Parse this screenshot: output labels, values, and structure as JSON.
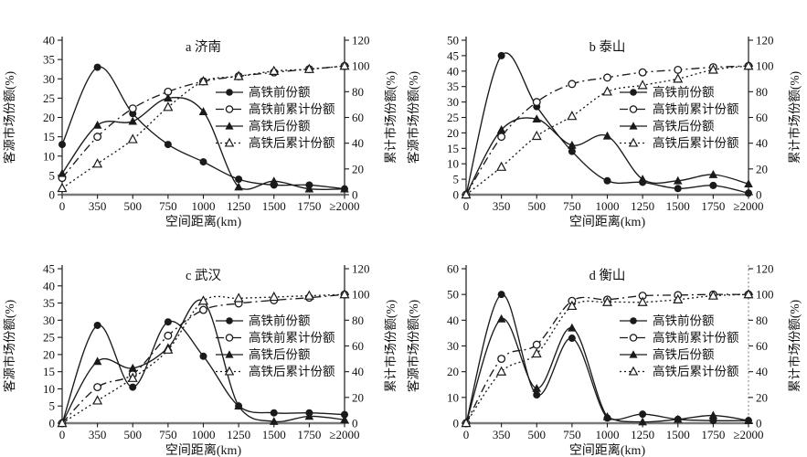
{
  "figure": {
    "background": "#ffffff",
    "colors": {
      "line": "#1a1a1a",
      "baseline": "#7a7a7a",
      "dotted_axis": "#8f8f8f",
      "text": "#111111",
      "marker_fill_open": "#ffffff"
    },
    "legend_labels": [
      "高铁前份额",
      "高铁前累计份额",
      "高铁后份额",
      "高铁后累计份额"
    ]
  },
  "chart_data": [
    {
      "type": "line",
      "title": "a 济南",
      "xlabel": "空间距离(km)",
      "ylabel_left": "客源市场份额(%)",
      "ylabel_right": "累计市场份额(%)",
      "categories": [
        "0",
        "350",
        "500",
        "750",
        "1000",
        "1250",
        "1500",
        "1750",
        "≥2000"
      ],
      "left_axis": {
        "min": 0,
        "max": 40,
        "step": 5
      },
      "right_axis": {
        "min": 0,
        "max": 120,
        "step": 20,
        "style": "solid"
      },
      "legend_position": "right-center",
      "grid": false,
      "series": [
        {
          "id": "pre-hsr-share",
          "name": "高铁前份额",
          "axis": "left",
          "marker": "filled-circle",
          "line": "solid",
          "values": [
            13,
            33,
            21,
            13,
            8.5,
            4,
            2.5,
            2.5,
            1.5
          ]
        },
        {
          "id": "pre-hsr-cumulative-share",
          "name": "高铁前累计份额",
          "axis": "right",
          "marker": "open-circle",
          "line": "dashdot",
          "values": [
            13,
            45,
            67,
            80,
            88,
            92,
            95,
            97.5,
            100
          ]
        },
        {
          "id": "post-hsr-share",
          "name": "高铁后份额",
          "axis": "left",
          "marker": "filled-triangle",
          "line": "solid",
          "values": [
            5.5,
            18,
            19,
            25,
            21.5,
            2,
            3.5,
            1.5,
            1.5
          ]
        },
        {
          "id": "post-hsr-cumulative-share",
          "name": "高铁后累计份额",
          "axis": "right",
          "marker": "open-triangle",
          "line": "dotted",
          "values": [
            5,
            24,
            43,
            68,
            88,
            92,
            96,
            97.5,
            100
          ]
        }
      ]
    },
    {
      "type": "line",
      "title": "b 泰山",
      "xlabel": "空间距离(km)",
      "ylabel_left": "客源市场份额(%)",
      "ylabel_right": "累计市场份额(%)",
      "categories": [
        "0",
        "350",
        "500",
        "750",
        "1000",
        "1250",
        "1500",
        "1750",
        "≥2000"
      ],
      "left_axis": {
        "min": 0,
        "max": 50,
        "step": 5
      },
      "right_axis": {
        "min": 0,
        "max": 120,
        "step": 20,
        "style": "solid"
      },
      "legend_position": "right-center",
      "grid": false,
      "series": [
        {
          "id": "pre-hsr-share",
          "name": "高铁前份额",
          "axis": "left",
          "marker": "filled-circle",
          "line": "solid",
          "values": [
            0,
            45,
            28.5,
            14,
            4.5,
            4,
            2,
            3,
            0.5
          ]
        },
        {
          "id": "pre-hsr-cumulative-share",
          "name": "高铁前累计份额",
          "axis": "right",
          "marker": "open-circle",
          "line": "dashdot",
          "values": [
            0,
            45,
            72,
            86,
            91,
            95,
            97,
            99,
            100
          ]
        },
        {
          "id": "post-hsr-share",
          "name": "高铁后份额",
          "axis": "left",
          "marker": "filled-triangle",
          "line": "solid",
          "values": [
            0,
            21,
            24.5,
            16,
            19,
            5,
            4.5,
            6.5,
            3.5
          ]
        },
        {
          "id": "post-hsr-cumulative-share",
          "name": "高铁后累计份额",
          "axis": "right",
          "marker": "open-triangle",
          "line": "dotted",
          "values": [
            0,
            21.5,
            45.5,
            61,
            80,
            85,
            90,
            97,
            100
          ]
        }
      ]
    },
    {
      "type": "line",
      "title": "c 武汉",
      "xlabel": "空间距离(km)",
      "ylabel_left": "客源市场份额(%)",
      "ylabel_right": "累计市场份额(%)",
      "categories": [
        "0",
        "350",
        "500",
        "750",
        "1000",
        "1250",
        "1500",
        "1750",
        "≥2000"
      ],
      "left_axis": {
        "min": 0,
        "max": 45,
        "step": 5
      },
      "right_axis": {
        "min": 0,
        "max": 120,
        "step": 20,
        "style": "solid"
      },
      "legend_position": "right-center",
      "grid": false,
      "series": [
        {
          "id": "pre-hsr-share",
          "name": "高铁前份额",
          "axis": "left",
          "marker": "filled-circle",
          "line": "solid",
          "values": [
            0,
            28.5,
            10.5,
            29.5,
            19.5,
            5,
            3,
            3,
            2.5
          ]
        },
        {
          "id": "pre-hsr-cumulative-share",
          "name": "高铁前累计份额",
          "axis": "right",
          "marker": "open-circle",
          "line": "dashdot",
          "values": [
            0,
            28,
            38,
            68,
            88,
            93,
            95.5,
            97.5,
            100
          ]
        },
        {
          "id": "post-hsr-share",
          "name": "高铁后份额",
          "axis": "left",
          "marker": "filled-triangle",
          "line": "solid",
          "values": [
            0,
            18,
            16,
            22,
            35.5,
            5,
            0.5,
            2,
            1
          ]
        },
        {
          "id": "post-hsr-cumulative-share",
          "name": "高铁后累计份额",
          "axis": "right",
          "marker": "open-triangle",
          "line": "dotted",
          "values": [
            0,
            17.5,
            35,
            57,
            95,
            97,
            98,
            99,
            100
          ]
        }
      ]
    },
    {
      "type": "line",
      "title": "d 衡山",
      "xlabel": "空间距离(km)",
      "ylabel_left": "客源市场份额(%)",
      "ylabel_right": "累计市场份额(%)",
      "categories": [
        "0",
        "350",
        "500",
        "750",
        "1000",
        "1250",
        "1500",
        "1750",
        "≥2000"
      ],
      "left_axis": {
        "min": 0,
        "max": 60,
        "step": 10
      },
      "right_axis": {
        "min": 0,
        "max": 120,
        "step": 20,
        "style": "dotted"
      },
      "legend_position": "right-center",
      "grid": false,
      "series": [
        {
          "id": "pre-hsr-share",
          "name": "高铁前份额",
          "axis": "left",
          "marker": "filled-circle",
          "line": "solid",
          "values": [
            0,
            50,
            11,
            33,
            2,
            3.5,
            1.5,
            1,
            1
          ]
        },
        {
          "id": "pre-hsr-cumulative-share",
          "name": "高铁前累计份额",
          "axis": "right",
          "marker": "open-circle",
          "line": "dashdot",
          "values": [
            0,
            50,
            61,
            95,
            96,
            99,
            99.5,
            100,
            100
          ]
        },
        {
          "id": "post-hsr-share",
          "name": "高铁后份额",
          "axis": "left",
          "marker": "filled-triangle",
          "line": "solid",
          "values": [
            0,
            40.5,
            13.5,
            37,
            2.5,
            0.5,
            1.5,
            3,
            1
          ]
        },
        {
          "id": "post-hsr-cumulative-share",
          "name": "高铁后累计份额",
          "axis": "right",
          "marker": "open-triangle",
          "line": "dotted",
          "values": [
            0,
            40,
            54,
            91,
            94,
            94,
            96,
            99,
            100
          ]
        }
      ]
    }
  ]
}
